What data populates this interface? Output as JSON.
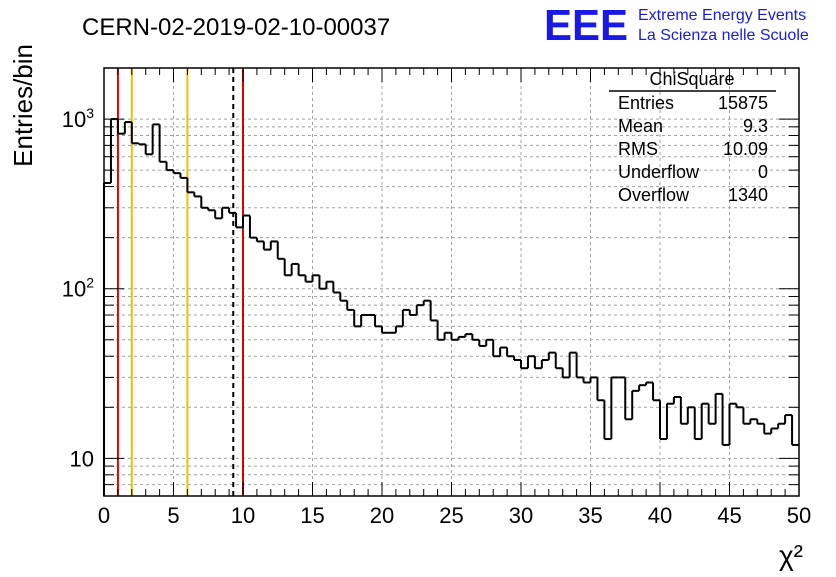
{
  "colors": {
    "histogram": "#000000",
    "grid": "#a0a0a0",
    "red_line": "#e00000",
    "yellow_line": "#f0c000",
    "mean_line": "#000000",
    "logo": "#1a1ae6"
  },
  "header": {
    "run_title": "CERN-02-2019-02-10-00037",
    "logo_text": "EEE",
    "logo_line1": "Extreme Energy Events",
    "logo_line2": "La Scienza nelle Scuole"
  },
  "stats": {
    "title": "ChiSquare",
    "rows": [
      {
        "label": "Entries",
        "value": "15875"
      },
      {
        "label": "Mean",
        "value": "9.3"
      },
      {
        "label": "RMS",
        "value": "10.09"
      },
      {
        "label": "Underflow",
        "value": "0"
      },
      {
        "label": "Overflow",
        "value": "1340"
      }
    ]
  },
  "chart_data": {
    "type": "histogram",
    "title": "CERN-02-2019-02-10-00037",
    "xlabel": "χ²",
    "ylabel": "Entries/bin",
    "x_scale": "linear",
    "y_scale": "log",
    "xlim": [
      0,
      50
    ],
    "ylim": [
      6,
      2000
    ],
    "grid": true,
    "bin_width": 0.5,
    "x_ticks": [
      {
        "value": 0,
        "label": "0"
      },
      {
        "value": 5,
        "label": "5"
      },
      {
        "value": 10,
        "label": "10"
      },
      {
        "value": 15,
        "label": "15"
      },
      {
        "value": 20,
        "label": "20"
      },
      {
        "value": 25,
        "label": "25"
      },
      {
        "value": 30,
        "label": "30"
      },
      {
        "value": 35,
        "label": "35"
      },
      {
        "value": 40,
        "label": "40"
      },
      {
        "value": 45,
        "label": "45"
      },
      {
        "value": 50,
        "label": "50"
      }
    ],
    "y_ticks": [
      {
        "value": 10,
        "base": "10",
        "exp": ""
      },
      {
        "value": 100,
        "base": "10",
        "exp": "2"
      },
      {
        "value": 1000,
        "base": "10",
        "exp": "3"
      }
    ],
    "vertical_lines": [
      {
        "x": 1,
        "color": "#e00000",
        "style": "solid"
      },
      {
        "x": 2,
        "color": "#f0c000",
        "style": "solid"
      },
      {
        "x": 6,
        "color": "#f0c000",
        "style": "solid"
      },
      {
        "x": 9.3,
        "color": "#000000",
        "style": "dashed"
      },
      {
        "x": 10,
        "color": "#e00000",
        "style": "solid"
      }
    ],
    "bin_contents": [
      420,
      1000,
      820,
      960,
      720,
      710,
      620,
      930,
      560,
      500,
      480,
      450,
      370,
      350,
      300,
      290,
      260,
      300,
      280,
      230,
      270,
      200,
      190,
      170,
      190,
      150,
      120,
      140,
      120,
      110,
      120,
      100,
      110,
      95,
      85,
      75,
      60,
      70,
      70,
      60,
      55,
      55,
      60,
      75,
      70,
      80,
      85,
      65,
      50,
      55,
      50,
      52,
      54,
      50,
      46,
      50,
      40,
      45,
      40,
      38,
      34,
      40,
      34,
      38,
      42,
      34,
      30,
      42,
      30,
      28,
      30,
      22,
      13,
      30,
      30,
      17,
      25,
      27,
      28,
      22,
      13,
      21,
      23,
      16,
      20,
      13,
      21,
      16,
      24,
      12,
      21,
      20,
      16,
      17,
      16,
      14,
      15,
      16,
      18,
      12
    ]
  }
}
